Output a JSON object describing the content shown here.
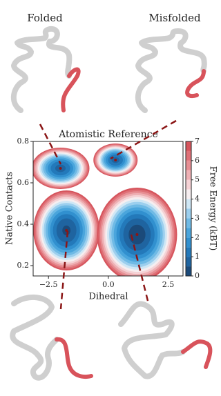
{
  "chart_data": {
    "type": "contour",
    "title": "Atomistic Reference",
    "xlabel": "Dihedral",
    "ylabel": "Native Contacts",
    "xlim": [
      -3.14,
      3.12
    ],
    "ylim": [
      0.15,
      0.8
    ],
    "xticks": [
      {
        "value": -2.5,
        "label": "−2.5"
      },
      {
        "value": 0,
        "label": "0.0"
      },
      {
        "value": 2.5,
        "label": "2.5"
      }
    ],
    "yticks": [
      0.2,
      0.4,
      0.6,
      0.8
    ],
    "structures": [
      "Folded",
      "Misfolded"
    ],
    "colorbar": {
      "label": "Free Energy (kBT)",
      "ticks": [
        0,
        1,
        2,
        3,
        4,
        5,
        6,
        7
      ],
      "lim": [
        0,
        7
      ],
      "colors": [
        "#1b4a7a",
        "#1f64a0",
        "#2379ba",
        "#3190cf",
        "#4aa5dc",
        "#6fbae5",
        "#9ccfee",
        "#cfe7f5",
        "#f6eef0",
        "#f5d2d5",
        "#eeb0b4",
        "#e78f94",
        "#df7077",
        "#d6555d"
      ]
    },
    "minima": [
      {
        "x": -2.0,
        "y": 0.67,
        "energy": 0.8
      },
      {
        "x": 0.3,
        "y": 0.71,
        "energy": 0.8
      },
      {
        "x": -1.75,
        "y": 0.37,
        "energy": 0.4
      },
      {
        "x": 1.2,
        "y": 0.35,
        "energy": 0.2
      }
    ]
  }
}
